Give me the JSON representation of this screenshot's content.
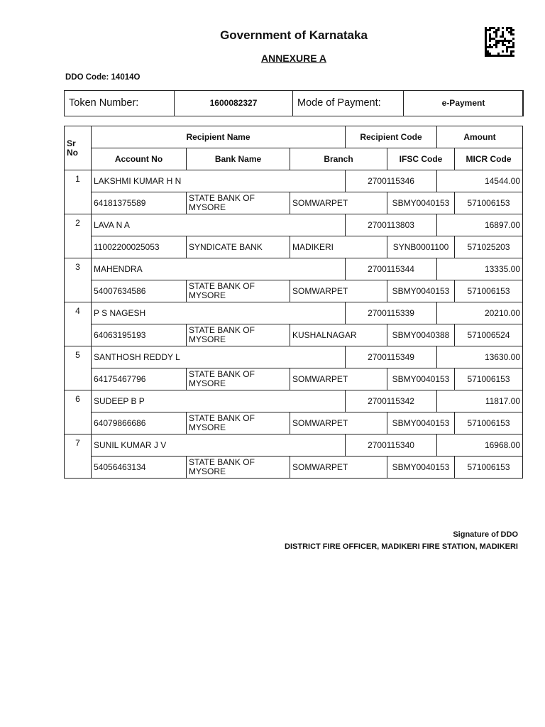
{
  "header": {
    "title": "Government of Karnataka",
    "subtitle": "ANNEXURE A",
    "ddo_code": "DDO Code: 14014O"
  },
  "token_box": {
    "token_label": "Token Number:",
    "token_value": "1600082327",
    "mode_label": "Mode of Payment:",
    "mode_value": "e-Payment"
  },
  "table": {
    "headers": {
      "sr_no": "Sr No",
      "recipient_name": "Recipient Name",
      "recipient_code": "Recipient Code",
      "amount": "Amount",
      "account_no": "Account No",
      "bank_name": "Bank Name",
      "branch": "Branch",
      "ifsc": "IFSC Code",
      "micr": "MICR Code"
    },
    "rows": [
      {
        "sr": "1",
        "name": "LAKSHMI KUMAR H N",
        "code": "2700115346",
        "amount": "14544.00",
        "account": "64181375589",
        "bank": "STATE BANK OF MYSORE",
        "branch": "SOMWARPET",
        "ifsc": "SBMY0040153",
        "micr": "571006153"
      },
      {
        "sr": "2",
        "name": "LAVA N A",
        "code": "2700113803",
        "amount": "16897.00",
        "account": "11002200025053",
        "bank": "SYNDICATE BANK",
        "branch": "MADIKERI",
        "ifsc": "SYNB0001100",
        "micr": "571025203"
      },
      {
        "sr": "3",
        "name": "MAHENDRA",
        "code": "2700115344",
        "amount": "13335.00",
        "account": "54007634586",
        "bank": "STATE BANK OF MYSORE",
        "branch": "SOMWARPET",
        "ifsc": "SBMY0040153",
        "micr": "571006153"
      },
      {
        "sr": "4",
        "name": "P S NAGESH",
        "code": "2700115339",
        "amount": "20210.00",
        "account": "64063195193",
        "bank": "STATE BANK OF MYSORE",
        "branch": "KUSHALNAGAR",
        "ifsc": "SBMY0040388",
        "micr": "571006524"
      },
      {
        "sr": "5",
        "name": "SANTHOSH REDDY L",
        "code": "2700115349",
        "amount": "13630.00",
        "account": "64175467796",
        "bank": "STATE BANK OF MYSORE",
        "branch": "SOMWARPET",
        "ifsc": "SBMY0040153",
        "micr": "571006153"
      },
      {
        "sr": "6",
        "name": "SUDEEP B P",
        "code": "2700115342",
        "amount": "11817.00",
        "account": "64079866686",
        "bank": "STATE BANK OF MYSORE",
        "branch": "SOMWARPET",
        "ifsc": "SBMY0040153",
        "micr": "571006153"
      },
      {
        "sr": "7",
        "name": "SUNIL KUMAR J V",
        "code": "2700115340",
        "amount": "16968.00",
        "account": "54056463134",
        "bank": "STATE BANK OF MYSORE",
        "branch": "SOMWARPET",
        "ifsc": "SBMY0040153",
        "micr": "571006153"
      }
    ]
  },
  "footer": {
    "signature_label": "Signature of DDO",
    "office": "DISTRICT FIRE OFFICER, MADIKERI FIRE STATION, MADIKERI"
  },
  "icons": {
    "barcode": "datamatrix-barcode-icon"
  }
}
